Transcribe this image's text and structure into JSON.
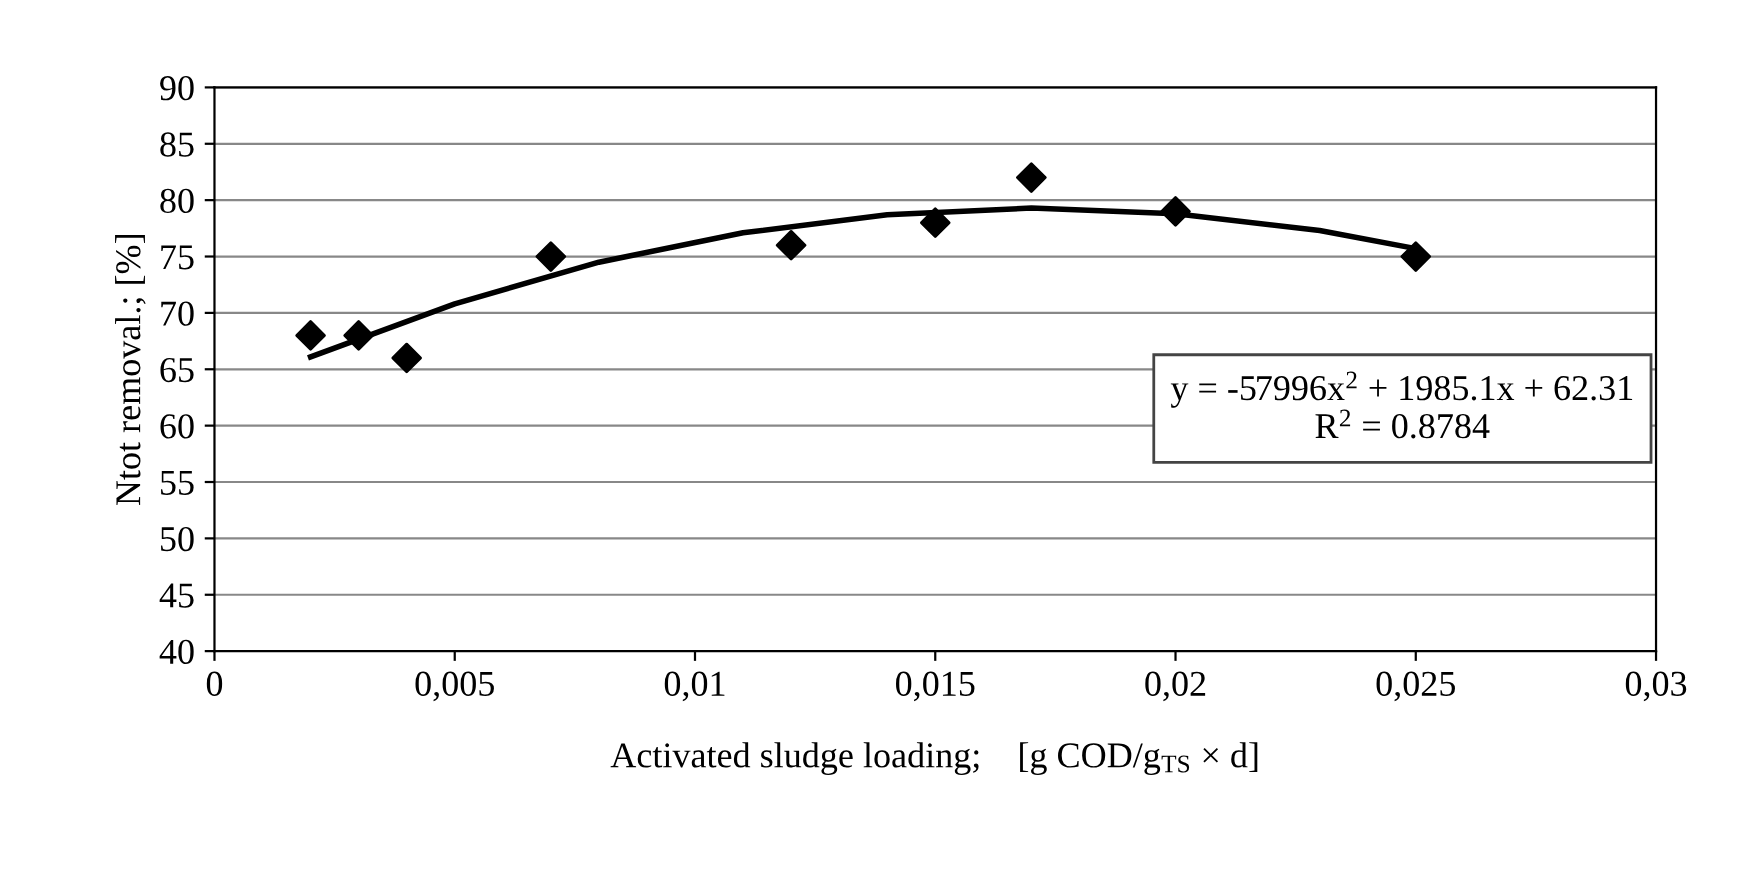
{
  "chart_data": {
    "type": "scatter",
    "xlabel": "Activated sludge loading;    [g COD/g$_{TS}$ × d]",
    "ylabel": "Ntot removal.; [%]",
    "x": [
      0.002,
      0.003,
      0.004,
      0.007,
      0.012,
      0.015,
      0.017,
      0.02,
      0.025
    ],
    "series": [
      {
        "color": "#000000",
        "marker": "diamond",
        "values": [
          68,
          68,
          66,
          75,
          76,
          78,
          82,
          79,
          75
        ]
      },
      {
        "type": "line",
        "color": "#000000",
        "line_style": "solid",
        "x": [
          0.002,
          0.005,
          0.008,
          0.011,
          0.014,
          0.017,
          0.02,
          0.023,
          0.025
        ],
        "values": [
          66.1,
          70.8,
          74.5,
          77.1,
          78.7,
          79.3,
          78.8,
          77.3,
          75.7
        ]
      }
    ],
    "annotations": [
      "y = -57996x$^{2}$ + 1985.1x + 62.31\nR$^{2}$ = 0.8784"
    ],
    "xlim": [
      0,
      0.03
    ],
    "xticks": [
      0,
      {
        "value": 0.005,
        "label": "0,005"
      },
      {
        "value": 0.01,
        "label": "0,01"
      },
      {
        "value": 0.015,
        "label": "0,015"
      },
      {
        "value": 0.02,
        "label": "0,02"
      },
      {
        "value": 0.025,
        "label": "0,025"
      },
      {
        "value": 0.03,
        "label": "0,03"
      }
    ],
    "ylim": [
      40,
      90
    ],
    "yticks": [
      40,
      45,
      50,
      55,
      60,
      65,
      70,
      75,
      80,
      85,
      90
    ],
    "grid": "y",
    "legend": false
  }
}
